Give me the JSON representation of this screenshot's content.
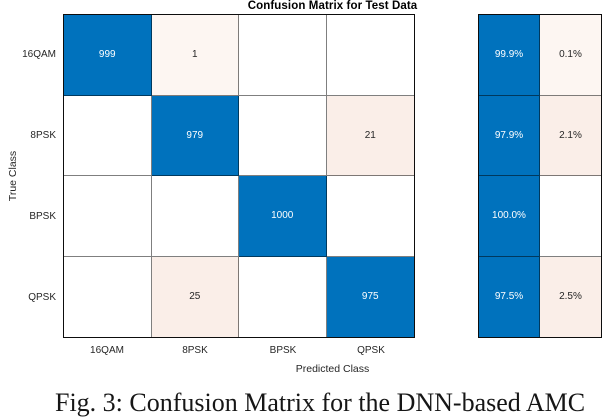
{
  "figure": {
    "title": "Confusion Matrix for Test Data",
    "x_axis_label": "Predicted Class",
    "y_axis_label": "True Class",
    "caption": "Fig. 3: Confusion Matrix for the DNN-based AMC"
  },
  "chart_data": {
    "type": "heatmap",
    "subtype": "confusion-matrix",
    "title": "Confusion Matrix for Test Data",
    "xlabel": "Predicted Class",
    "ylabel": "True Class",
    "classes": [
      "16QAM",
      "8PSK",
      "BPSK",
      "QPSK"
    ],
    "matrix": [
      [
        999,
        1,
        0,
        0
      ],
      [
        0,
        979,
        0,
        21
      ],
      [
        0,
        0,
        1000,
        0
      ],
      [
        0,
        25,
        0,
        975
      ]
    ],
    "row_summary": {
      "correct_pct": [
        "99.9%",
        "97.9%",
        "100.0%",
        "97.5%"
      ],
      "incorrect_pct": [
        "0.1%",
        "2.1%",
        "",
        "2.5%"
      ]
    },
    "colors": {
      "diagonal": "#0072BD",
      "off_diagonal": "#FAEEE8",
      "off_diagonal_light": "#FDF6F2",
      "zero": "#FFFFFF",
      "text_on_diagonal": "#FFFFFF",
      "text_on_off_diagonal": "#262626"
    },
    "grid": true,
    "normalization_panel_position": "right"
  }
}
